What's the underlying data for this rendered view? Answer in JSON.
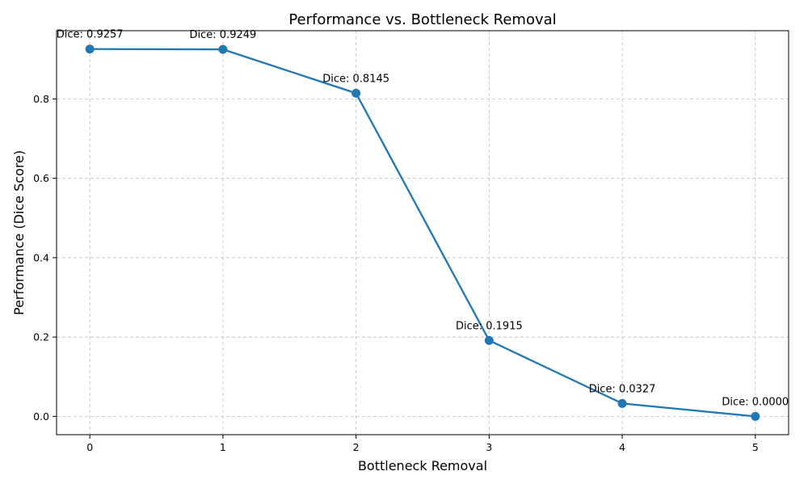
{
  "chart_data": {
    "type": "line",
    "title": "Performance vs. Bottleneck Removal",
    "xlabel": "Bottleneck Removal",
    "ylabel": "Performance (Dice Score)",
    "x": [
      0,
      1,
      2,
      3,
      4,
      5
    ],
    "series": [
      {
        "values": [
          0.9257,
          0.9249,
          0.8145,
          0.1915,
          0.0327,
          0.0
        ],
        "color": "#1f77b4",
        "marker": "circle"
      }
    ],
    "data_labels": [
      "Dice: 0.9257",
      "Dice: 0.9249",
      "Dice: 0.8145",
      "Dice: 0.1915",
      "Dice: 0.0327",
      "Dice: 0.0000"
    ],
    "xticks": [
      "0",
      "1",
      "2",
      "3",
      "4",
      "5"
    ],
    "yticks": [
      "0.0",
      "0.2",
      "0.4",
      "0.6",
      "0.8"
    ],
    "xlim": [
      -0.25,
      5.25
    ],
    "ylim": [
      -0.046,
      0.972
    ],
    "grid": true,
    "legend": "none"
  }
}
